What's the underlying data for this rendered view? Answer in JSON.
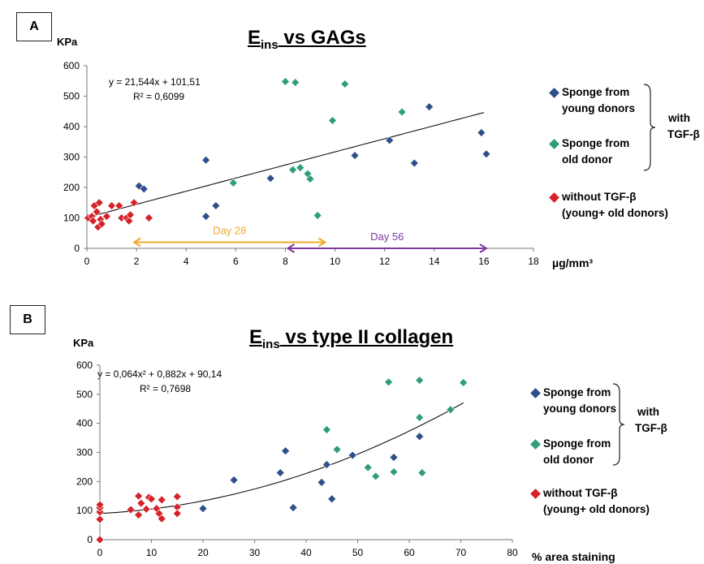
{
  "colors": {
    "young": "#2e4f8a",
    "old": "#2e9e77",
    "without": "#d6222a",
    "day28": "#f0a928",
    "day56": "#7d3a9e"
  },
  "legend": {
    "young_line1": "Sponge from",
    "young_line2": "young donors",
    "old_line1": "Sponge from",
    "old_line2": "old donor",
    "without_line1": "without TGF-β",
    "without_line2": "(young+ old donors)",
    "with_line1": "with",
    "with_line2": "TGF-β"
  },
  "chart_data": [
    {
      "panel": "A",
      "type": "scatter",
      "title_main": "E",
      "title_sub": "ins",
      "title_rest": " vs GAGs",
      "ylabel": "KPa",
      "xlabel": "µg/mm³",
      "xlim": [
        0,
        18
      ],
      "ylim": [
        0,
        600
      ],
      "xticks": [
        "0",
        "2",
        "4",
        "6",
        "8",
        "10",
        "12",
        "14",
        "16",
        "18"
      ],
      "yticks": [
        "0",
        "100",
        "200",
        "300",
        "400",
        "500",
        "600"
      ],
      "equation": "y = 21,544x + 101,51",
      "r2": "R² = 0,6099",
      "trendline": {
        "kind": "linear",
        "a": 21.544,
        "b": 101.51,
        "x_range": [
          0,
          16
        ]
      },
      "annotations": [
        {
          "text": "Day 28",
          "from": 1.9,
          "to": 9.6,
          "y": 20
        },
        {
          "text": "Day 56",
          "from": 8.1,
          "to": 16.1,
          "y": 0
        }
      ],
      "series": [
        {
          "name": "Sponge from young donors",
          "key": "young",
          "points": [
            [
              2.1,
              205
            ],
            [
              2.3,
              195
            ],
            [
              4.8,
              290
            ],
            [
              4.8,
              105
            ],
            [
              5.2,
              140
            ],
            [
              7.4,
              230
            ],
            [
              10.8,
              305
            ],
            [
              12.2,
              355
            ],
            [
              13.2,
              280
            ],
            [
              13.8,
              465
            ],
            [
              15.9,
              380
            ],
            [
              16.1,
              310
            ]
          ]
        },
        {
          "name": "Sponge from old donor",
          "key": "old",
          "points": [
            [
              5.9,
              215
            ],
            [
              8.0,
              548
            ],
            [
              8.4,
              545
            ],
            [
              8.3,
              258
            ],
            [
              8.6,
              265
            ],
            [
              8.9,
              245
            ],
            [
              9.0,
              228
            ],
            [
              9.3,
              108
            ],
            [
              9.9,
              420
            ],
            [
              10.4,
              540
            ],
            [
              12.7,
              448
            ]
          ]
        },
        {
          "name": "without TGF-β (young+ old donors)",
          "key": "without",
          "points": [
            [
              0.05,
              100
            ],
            [
              0.2,
              105
            ],
            [
              0.25,
              90
            ],
            [
              0.3,
              140
            ],
            [
              0.4,
              120
            ],
            [
              0.45,
              70
            ],
            [
              0.5,
              150
            ],
            [
              0.55,
              95
            ],
            [
              0.6,
              80
            ],
            [
              0.8,
              105
            ],
            [
              1.0,
              140
            ],
            [
              1.3,
              140
            ],
            [
              1.4,
              100
            ],
            [
              1.6,
              100
            ],
            [
              1.7,
              90
            ],
            [
              1.75,
              110
            ],
            [
              1.9,
              150
            ],
            [
              2.5,
              100
            ]
          ]
        }
      ]
    },
    {
      "panel": "B",
      "type": "scatter",
      "title_main": "E",
      "title_sub": "ins",
      "title_rest": " vs type II collagen",
      "ylabel": "KPa",
      "xlabel": "% area staining",
      "xlim": [
        0,
        80
      ],
      "ylim": [
        0,
        600
      ],
      "xticks": [
        "0",
        "10",
        "20",
        "30",
        "40",
        "50",
        "60",
        "70",
        "80"
      ],
      "yticks": [
        "0",
        "100",
        "200",
        "300",
        "400",
        "500",
        "600"
      ],
      "equation": "y = 0,064x² + 0,882x + 90,14",
      "r2": "R² = 0,7698",
      "trendline": {
        "kind": "poly2",
        "a": 0.064,
        "b": 0.882,
        "c": 90.14,
        "x_range": [
          0,
          70.5
        ]
      },
      "series": [
        {
          "name": "Sponge from young donors",
          "key": "young",
          "points": [
            [
              20,
              107
            ],
            [
              26,
              205
            ],
            [
              35,
              230
            ],
            [
              36,
              305
            ],
            [
              37.5,
              110
            ],
            [
              43,
              197
            ],
            [
              44,
              258
            ],
            [
              45,
              140
            ],
            [
              49,
              290
            ],
            [
              57,
              283
            ],
            [
              62,
              355
            ]
          ]
        },
        {
          "name": "Sponge from old donor",
          "key": "old",
          "points": [
            [
              44,
              378
            ],
            [
              46,
              310
            ],
            [
              52,
              248
            ],
            [
              53.5,
              218
            ],
            [
              56,
              542
            ],
            [
              57,
              233
            ],
            [
              62,
              548
            ],
            [
              62,
              420
            ],
            [
              62.5,
              230
            ],
            [
              68,
              447
            ],
            [
              70.5,
              540
            ]
          ]
        },
        {
          "name": "without TGF-β (young+ old donors)",
          "key": "without",
          "points": [
            [
              0,
              0
            ],
            [
              0,
              70
            ],
            [
              0,
              95
            ],
            [
              0,
              110
            ],
            [
              0,
              120
            ],
            [
              6,
              103
            ],
            [
              7.5,
              85
            ],
            [
              7.5,
              150
            ],
            [
              8,
              125
            ],
            [
              9,
              105
            ],
            [
              9.5,
              145
            ],
            [
              10,
              140
            ],
            [
              11,
              107
            ],
            [
              11.5,
              90
            ],
            [
              12,
              72
            ],
            [
              12,
              137
            ],
            [
              15,
              112
            ],
            [
              15,
              90
            ],
            [
              15,
              148
            ]
          ]
        }
      ]
    }
  ],
  "panel_label_a": "A",
  "panel_label_b": "B"
}
